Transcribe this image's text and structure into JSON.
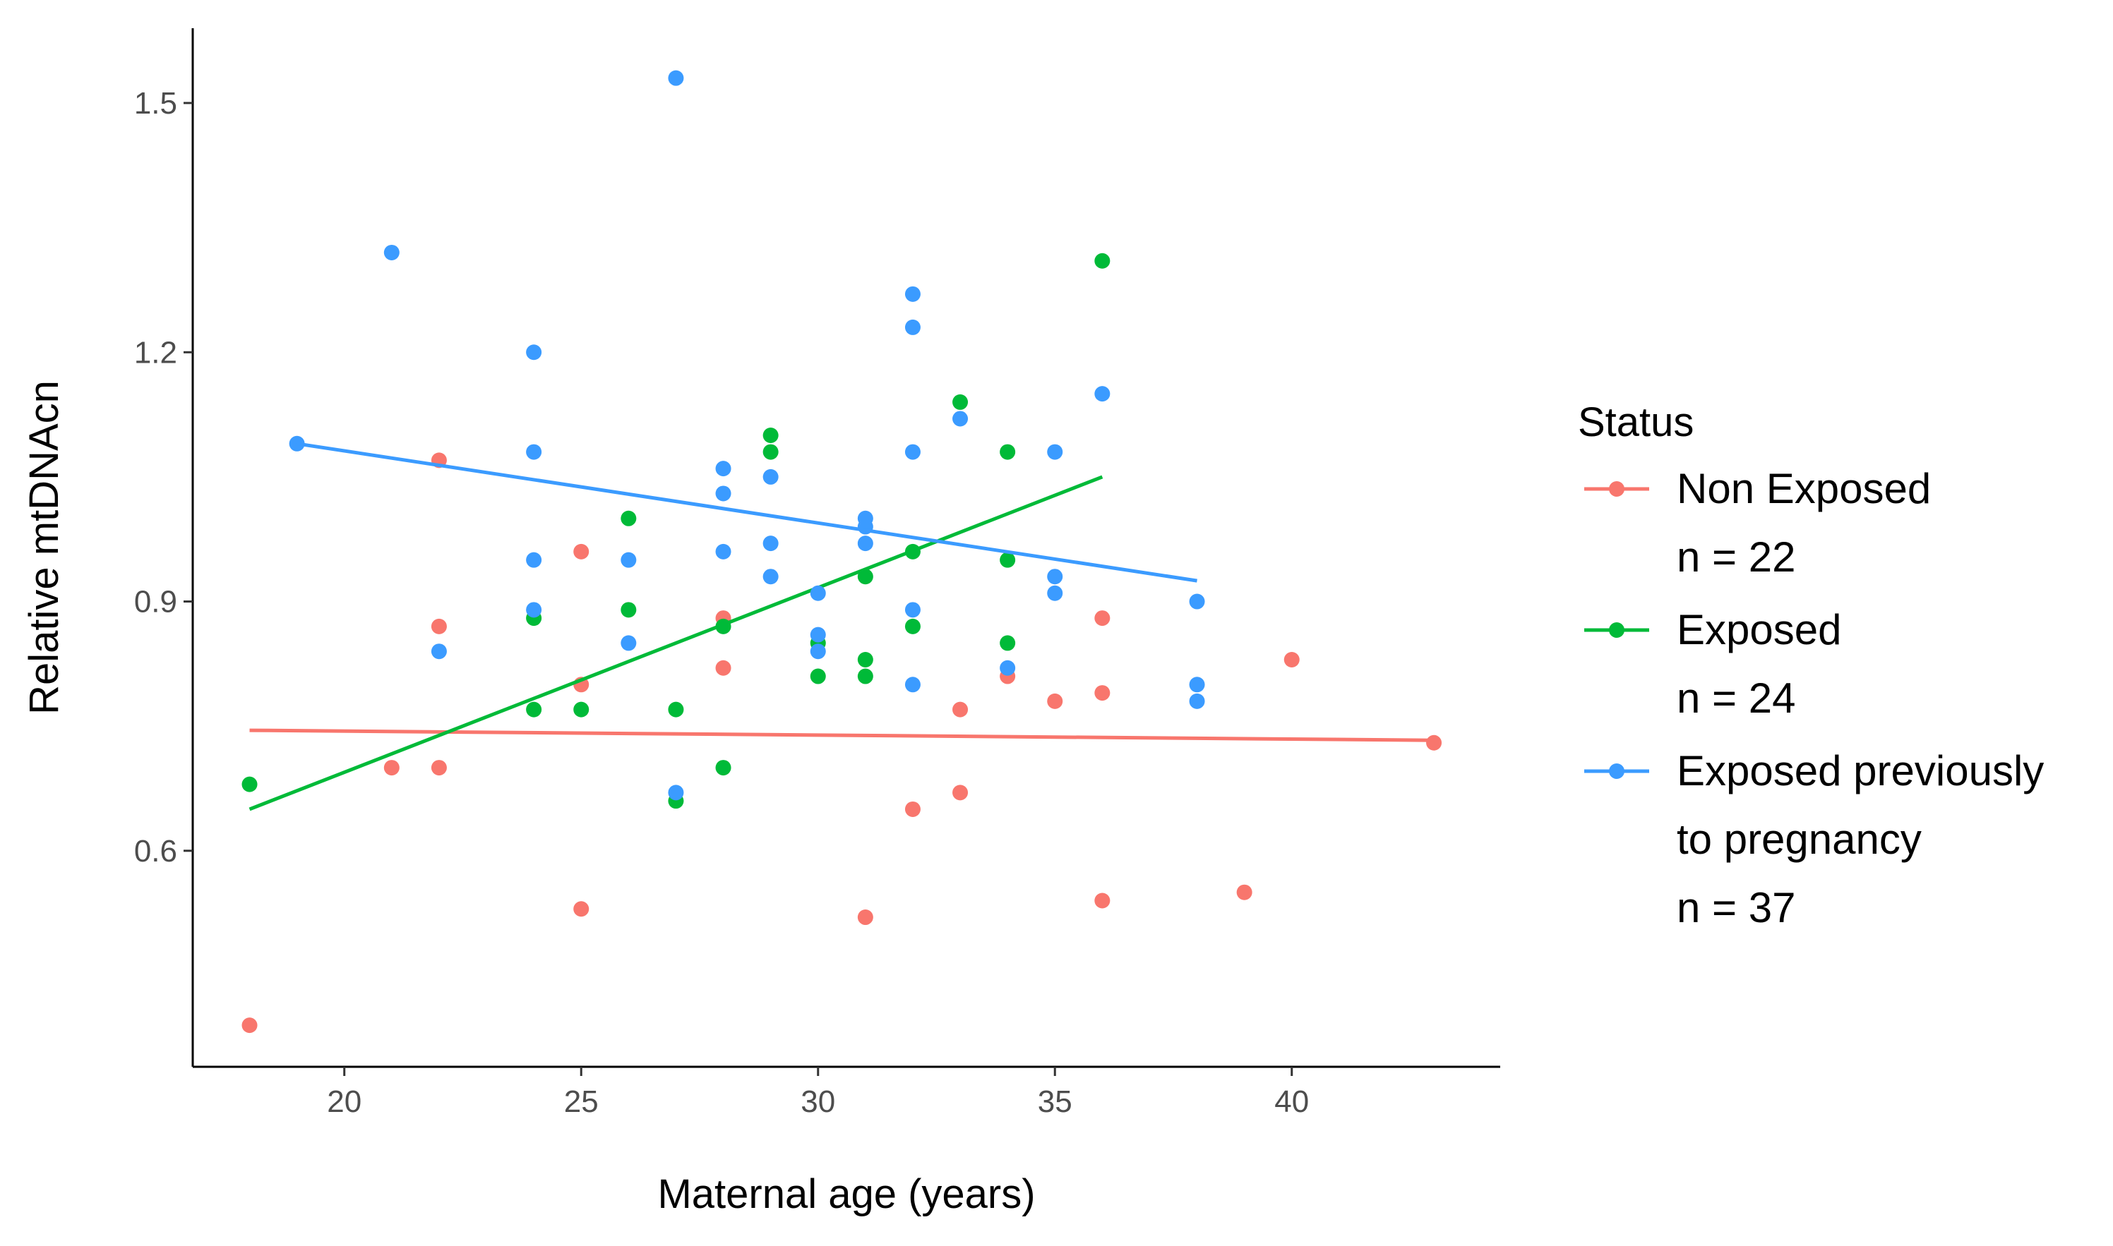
{
  "chart_data": {
    "type": "scatter",
    "title": "",
    "xlabel": "Maternal age (years)",
    "ylabel": "Relative mtDNAcn",
    "xlim": [
      16.8,
      44.4
    ],
    "ylim": [
      0.34,
      1.59
    ],
    "xticks": [
      20,
      25,
      30,
      35,
      40
    ],
    "yticks": [
      0.6,
      0.9,
      1.2,
      1.5
    ],
    "xtick_labels": [
      "20",
      "25",
      "30",
      "35",
      "40"
    ],
    "ytick_labels": [
      "0.6",
      "0.9",
      "1.2",
      "1.5"
    ],
    "grid": false,
    "legend": {
      "title": "Status",
      "position": "right",
      "entries": [
        {
          "label_lines": [
            "Non Exposed",
            "n = 22"
          ],
          "color": "#F8766D"
        },
        {
          "label_lines": [
            "Exposed",
            "n = 24"
          ],
          "color": "#00BA38"
        },
        {
          "label_lines": [
            "Exposed previously",
            "to pregnancy",
            "n = 37"
          ],
          "color": "#3B9BFF"
        }
      ]
    },
    "series": [
      {
        "name": "Non Exposed",
        "color": "#F8766D",
        "points": [
          [
            18,
            0.39
          ],
          [
            21,
            0.7
          ],
          [
            22,
            1.07
          ],
          [
            22,
            0.87
          ],
          [
            22,
            0.7
          ],
          [
            25,
            0.96
          ],
          [
            25,
            0.8
          ],
          [
            25,
            0.53
          ],
          [
            28,
            0.88
          ],
          [
            28,
            0.82
          ],
          [
            31,
            0.52
          ],
          [
            32,
            0.65
          ],
          [
            33,
            0.77
          ],
          [
            33,
            0.67
          ],
          [
            34,
            0.81
          ],
          [
            35,
            0.78
          ],
          [
            36,
            0.88
          ],
          [
            36,
            0.79
          ],
          [
            36,
            0.54
          ],
          [
            39,
            0.55
          ],
          [
            40,
            0.83
          ],
          [
            43,
            0.73
          ]
        ],
        "trend": [
          [
            18,
            0.745
          ],
          [
            43,
            0.733
          ]
        ]
      },
      {
        "name": "Exposed",
        "color": "#00BA38",
        "points": [
          [
            18,
            0.68
          ],
          [
            24,
            0.88
          ],
          [
            24,
            0.77
          ],
          [
            25,
            0.77
          ],
          [
            26,
            1.0
          ],
          [
            26,
            0.89
          ],
          [
            27,
            0.77
          ],
          [
            27,
            0.66
          ],
          [
            28,
            0.7
          ],
          [
            29,
            1.1
          ],
          [
            29,
            1.08
          ],
          [
            30,
            0.85
          ],
          [
            30,
            0.81
          ],
          [
            31,
            0.83
          ],
          [
            31,
            0.81
          ],
          [
            31,
            0.93
          ],
          [
            32,
            0.96
          ],
          [
            32,
            0.87
          ],
          [
            33,
            1.14
          ],
          [
            34,
            1.08
          ],
          [
            34,
            0.95
          ],
          [
            34,
            0.85
          ],
          [
            36,
            1.31
          ],
          [
            28,
            0.87
          ]
        ],
        "trend": [
          [
            18,
            0.65
          ],
          [
            36,
            1.05
          ]
        ]
      },
      {
        "name": "Exposed previously to pregnancy",
        "color": "#3B9BFF",
        "points": [
          [
            19,
            1.09
          ],
          [
            21,
            1.32
          ],
          [
            22,
            0.84
          ],
          [
            24,
            1.2
          ],
          [
            24,
            1.08
          ],
          [
            24,
            0.95
          ],
          [
            24,
            0.89
          ],
          [
            26,
            0.95
          ],
          [
            26,
            0.85
          ],
          [
            27,
            1.53
          ],
          [
            27,
            0.67
          ],
          [
            28,
            1.06
          ],
          [
            28,
            1.03
          ],
          [
            28,
            0.96
          ],
          [
            29,
            1.05
          ],
          [
            29,
            0.97
          ],
          [
            29,
            0.93
          ],
          [
            30,
            0.91
          ],
          [
            30,
            0.86
          ],
          [
            31,
            1.0
          ],
          [
            31,
            0.97
          ],
          [
            32,
            1.27
          ],
          [
            32,
            1.23
          ],
          [
            32,
            1.08
          ],
          [
            32,
            0.89
          ],
          [
            32,
            0.8
          ],
          [
            33,
            1.12
          ],
          [
            34,
            0.82
          ],
          [
            35,
            1.08
          ],
          [
            35,
            0.93
          ],
          [
            35,
            0.91
          ],
          [
            36,
            1.15
          ],
          [
            38,
            0.9
          ],
          [
            38,
            0.8
          ],
          [
            38,
            0.78
          ],
          [
            30,
            0.84
          ],
          [
            31,
            0.99
          ]
        ],
        "trend": [
          [
            19,
            1.09
          ],
          [
            38,
            0.925
          ]
        ]
      }
    ]
  }
}
